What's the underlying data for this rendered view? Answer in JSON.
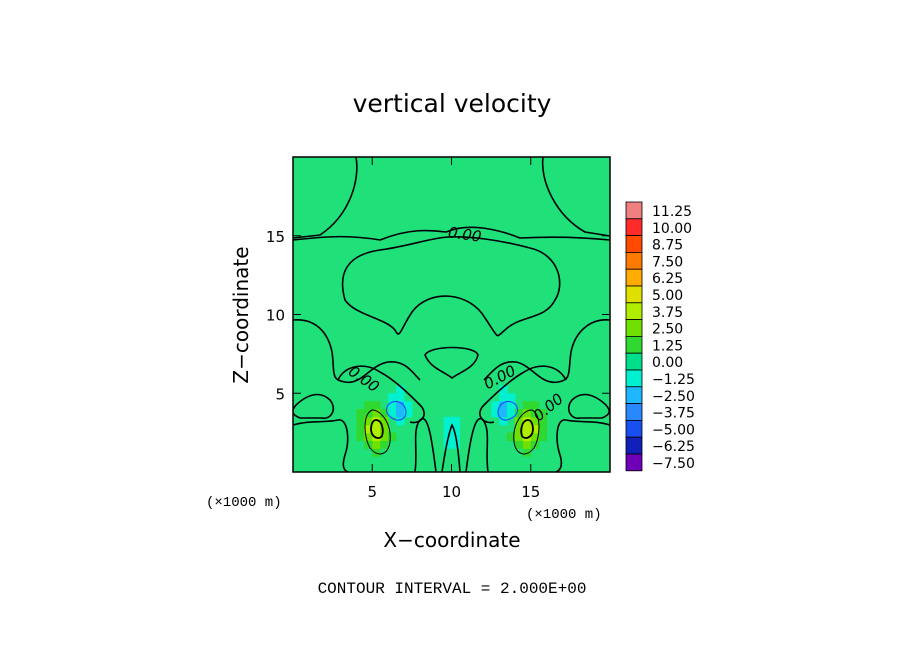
{
  "chart_data": {
    "type": "heatmap",
    "title": "vertical velocity",
    "xlabel": "X−coordinate",
    "ylabel": "Z−coordinate",
    "x_units": "(×1000 m)",
    "y_units": "(×1000 m)",
    "xlim": [
      0,
      20
    ],
    "ylim": [
      0,
      20
    ],
    "x_ticks": [
      5,
      10,
      15
    ],
    "y_ticks": [
      5,
      10,
      15
    ],
    "contour_interval_label": "CONTOUR INTERVAL = 2.000E+00",
    "contour_labels": [
      "0.00",
      "0.00",
      "0.00",
      "0.00"
    ],
    "colorbar": {
      "levels": [
        "11.25",
        "10.00",
        "8.75",
        "7.50",
        "6.25",
        "5.00",
        "3.75",
        "2.50",
        "1.25",
        "0.00",
        "−1.25",
        "−2.50",
        "−3.75",
        "−5.00",
        "−6.25",
        "−7.50"
      ],
      "colors": [
        "#f08080",
        "#ff2a2a",
        "#ff4a00",
        "#ff7a00",
        "#ffab00",
        "#e0e000",
        "#b0ee00",
        "#70e000",
        "#30d830",
        "#00e08a",
        "#00f0d0",
        "#1eb8ff",
        "#2a88ff",
        "#1850f0",
        "#1020b8",
        "#7000b8"
      ]
    },
    "features": {
      "background_value": 0.4,
      "updrafts": [
        {
          "x": 5.2,
          "z": 2.8,
          "peak": 4.5
        },
        {
          "x": 14.8,
          "z": 2.8,
          "peak": 4.5
        }
      ],
      "downdrafts": [
        {
          "x": 6.5,
          "z": 4.0,
          "min": -2.4
        },
        {
          "x": 13.5,
          "z": 4.0,
          "min": -2.4
        },
        {
          "x": 10.0,
          "z": 2.5,
          "min": -1.0
        }
      ]
    }
  }
}
